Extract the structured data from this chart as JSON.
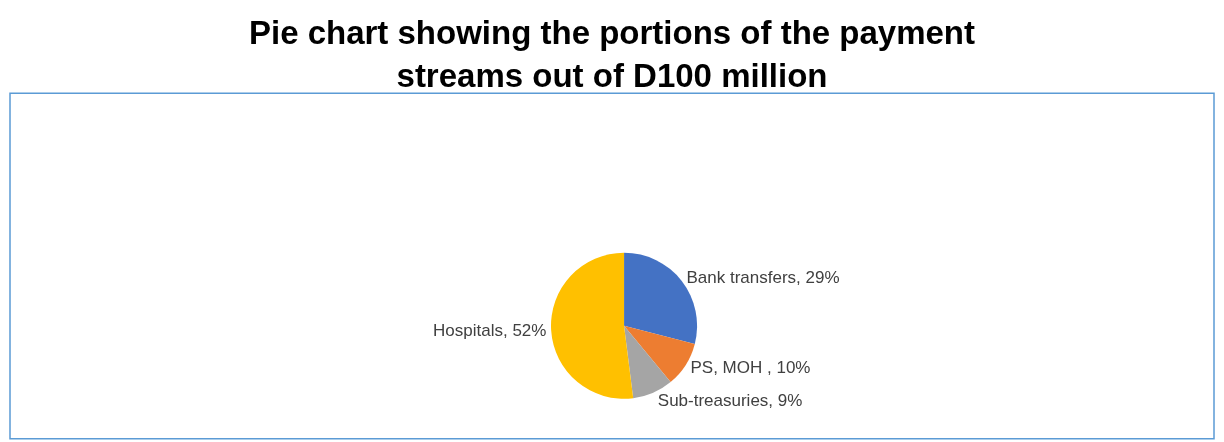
{
  "chart_data": {
    "type": "pie",
    "title": "Pie chart showing the portions of the payment streams out of D100 million",
    "categories": [
      "Bank transfers",
      "PS, MOH ",
      "Sub-treasuries",
      "Hospitals"
    ],
    "values": [
      29,
      10,
      9,
      52
    ],
    "value_labels": [
      "29%",
      "10%",
      "9%",
      "52%"
    ],
    "colors": [
      "#4472c4",
      "#ed7d31",
      "#a5a5a5",
      "#ffc000"
    ],
    "legend": false
  }
}
